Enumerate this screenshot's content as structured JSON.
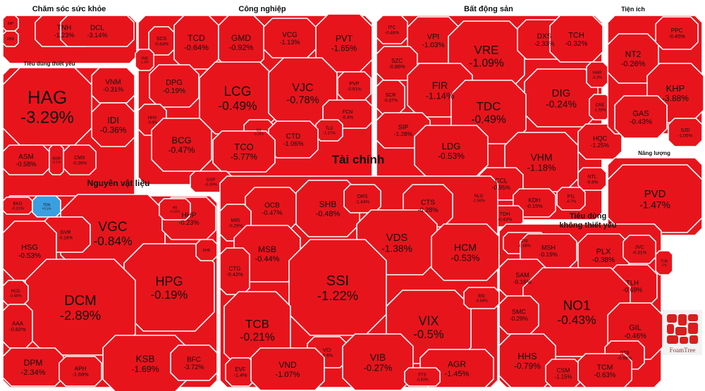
{
  "brand": {
    "logo_text": "FoamTree"
  },
  "colors": {
    "down": "#e8141c",
    "up": "#3a9fe0",
    "border": "#ffffff"
  },
  "chart_data": {
    "type": "treemap",
    "title": "",
    "color_rule": "red = decrease, blue = increase",
    "sectors": [
      {
        "name": "Chăm sóc sức khỏe",
        "stocks": [
          {
            "ticker": "TNH",
            "change": "-1.23%"
          },
          {
            "ticker": "DCL",
            "change": "-3.14%"
          },
          {
            "ticker": "IMP",
            "change": ""
          },
          {
            "ticker": "DBD",
            "change": ""
          }
        ]
      },
      {
        "name": "Công nghiệp",
        "stocks": [
          {
            "ticker": "TCD",
            "change": "-0.64%"
          },
          {
            "ticker": "GMD",
            "change": "-0.92%"
          },
          {
            "ticker": "VCG",
            "change": "-1.13%"
          },
          {
            "ticker": "PVT",
            "change": "-1.65%"
          },
          {
            "ticker": "SCS",
            "change": "-0.64%"
          },
          {
            "ticker": "LCG",
            "change": "-0.49%"
          },
          {
            "ticker": "VJC",
            "change": "-0.78%"
          },
          {
            "ticker": "DPG",
            "change": "-0.19%"
          },
          {
            "ticker": "PVP",
            "change": "-0.91%"
          },
          {
            "ticker": "FCN",
            "change": "-0.4%"
          },
          {
            "ticker": "HHV",
            "change": "-0.9%"
          },
          {
            "ticker": "BCG",
            "change": "-0.47%"
          },
          {
            "ticker": "CII",
            "change": "-0.35%"
          },
          {
            "ticker": "TLD",
            "change": "-1.37%"
          },
          {
            "ticker": "CTD",
            "change": "-1.06%"
          },
          {
            "ticker": "TCO",
            "change": "-5.77%"
          },
          {
            "ticker": "GSP",
            "change": "-0.39%"
          },
          {
            "ticker": "VNE",
            "change": "-1.9%"
          }
        ]
      },
      {
        "name": "Bất động sản",
        "stocks": [
          {
            "ticker": "ITC",
            "change": "-0.46%"
          },
          {
            "ticker": "VPI",
            "change": "-1.03%"
          },
          {
            "ticker": "VRE",
            "change": "-1.09%"
          },
          {
            "ticker": "DXS",
            "change": "-2.33%"
          },
          {
            "ticker": "TCH",
            "change": "-0.32%"
          },
          {
            "ticker": "SZC",
            "change": "-0.86%"
          },
          {
            "ticker": "FIR",
            "change": "-1.14%"
          },
          {
            "ticker": "DIG",
            "change": "-0.24%"
          },
          {
            "ticker": "SCR",
            "change": "-0.37%"
          },
          {
            "ticker": "TDC",
            "change": "-0.49%"
          },
          {
            "ticker": "SIP",
            "change": "-1.28%"
          },
          {
            "ticker": "LDG",
            "change": "-0.53%"
          },
          {
            "ticker": "HQC",
            "change": "-1.25%"
          },
          {
            "ticker": "VHM",
            "change": "-1.18%"
          },
          {
            "ticker": "CCL",
            "change": "-0.95%"
          },
          {
            "ticker": "NTL",
            "change": "-0.8%"
          },
          {
            "ticker": "NLG",
            "change": "-1.56%"
          },
          {
            "ticker": "KDH",
            "change": "-0.15%"
          },
          {
            "ticker": "PTL",
            "change": "-0.7%"
          },
          {
            "ticker": "TDH",
            "change": "-0.43%"
          },
          {
            "ticker": "HAR",
            "change": "-0.3%"
          },
          {
            "ticker": "CRE",
            "change": "-1.58%"
          }
        ]
      },
      {
        "name": "Tiện ích",
        "stocks": [
          {
            "ticker": "NT2",
            "change": "-0.26%"
          },
          {
            "ticker": "PPC",
            "change": "-0.45%"
          },
          {
            "ticker": "KHP",
            "change": "-3.88%"
          },
          {
            "ticker": "GAS",
            "change": "-0.43%"
          },
          {
            "ticker": "SJD",
            "change": "-1.05%"
          }
        ]
      },
      {
        "name": "Năng lượng",
        "stocks": [
          {
            "ticker": "PVD",
            "change": "-1.47%"
          }
        ]
      },
      {
        "name": "Tiêu dùng thiết yếu",
        "stocks": [
          {
            "ticker": "HAG",
            "change": "-3.29%"
          },
          {
            "ticker": "VNM",
            "change": "-0.31%"
          },
          {
            "ticker": "IDI",
            "change": "-0.36%"
          },
          {
            "ticker": "ASM",
            "change": "-0.58%"
          },
          {
            "ticker": "CMX",
            "change": "-0.39%"
          },
          {
            "ticker": "AGM",
            "change": "-0.1%"
          }
        ]
      },
      {
        "name": "Nguyên vật liệu",
        "stocks": [
          {
            "ticker": "BKG",
            "change": "-0.31%"
          },
          {
            "ticker": "TDN",
            "change": "+0.1%"
          },
          {
            "ticker": "VGC",
            "change": "-0.84%"
          },
          {
            "ticker": "HHP",
            "change": "-0.23%"
          },
          {
            "ticker": "GVR",
            "change": "-0.16%"
          },
          {
            "ticker": "HSG",
            "change": "-0.53%"
          },
          {
            "ticker": "HII",
            "change": "-0.22%"
          },
          {
            "ticker": "HPG",
            "change": "-0.19%"
          },
          {
            "ticker": "DCM",
            "change": "-2.89%"
          },
          {
            "ticker": "HCD",
            "change": "-0.46%"
          },
          {
            "ticker": "AAA",
            "change": "-0.82%"
          },
          {
            "ticker": "KSB",
            "change": "-1.69%"
          },
          {
            "ticker": "DPM",
            "change": "-2.34%"
          },
          {
            "ticker": "APH",
            "change": "-1.69%"
          },
          {
            "ticker": "BFC",
            "change": "-3.72%"
          },
          {
            "ticker": "PHR",
            "change": ""
          }
        ]
      },
      {
        "name": "Tài chính",
        "stocks": [
          {
            "ticker": "OCB",
            "change": "-0.47%"
          },
          {
            "ticker": "SHB",
            "change": "-0.48%"
          },
          {
            "ticker": "ORS",
            "change": "-1.44%"
          },
          {
            "ticker": "CTS",
            "change": "-0.28%"
          },
          {
            "ticker": "MIG",
            "change": "-0.29%"
          },
          {
            "ticker": "VDS",
            "change": "-1.38%"
          },
          {
            "ticker": "MSB",
            "change": "-0.44%"
          },
          {
            "ticker": "HCM",
            "change": "-0.53%"
          },
          {
            "ticker": "CTG",
            "change": "-0.42%"
          },
          {
            "ticker": "SSI",
            "change": "-1.22%"
          },
          {
            "ticker": "TCB",
            "change": "-0.21%"
          },
          {
            "ticker": "VIX",
            "change": "-0.5%"
          },
          {
            "ticker": "BSI",
            "change": "-0.68%"
          },
          {
            "ticker": "VCI",
            "change": "-0.6%"
          },
          {
            "ticker": "EVF",
            "change": "-1.4%"
          },
          {
            "ticker": "VND",
            "change": "-1.07%"
          },
          {
            "ticker": "VIB",
            "change": "-0.27%"
          },
          {
            "ticker": "AGR",
            "change": "-1.45%"
          },
          {
            "ticker": "FTS",
            "change": "-0.83%"
          }
        ]
      },
      {
        "name": "Tiêu dùng không thiết yếu",
        "stocks": [
          {
            "ticker": "TNI",
            "change": "-0.88%"
          },
          {
            "ticker": "MSH",
            "change": "-0.19%"
          },
          {
            "ticker": "PLX",
            "change": "-0.38%"
          },
          {
            "ticker": "JVC",
            "change": "-0.31%"
          },
          {
            "ticker": "SAM",
            "change": "-0.16%"
          },
          {
            "ticker": "TLH",
            "change": "-0.69%"
          },
          {
            "ticker": "NO1",
            "change": "-0.43%"
          },
          {
            "ticker": "SMC",
            "change": "-0.29%"
          },
          {
            "ticker": "GIL",
            "change": "-0.46%"
          },
          {
            "ticker": "HHS",
            "change": "-0.79%"
          },
          {
            "ticker": "ST8",
            "change": "-0.99%"
          },
          {
            "ticker": "CSM",
            "change": "-1.15%"
          },
          {
            "ticker": "TCM",
            "change": "-0.63%"
          },
          {
            "ticker": "TVB",
            "change": "-1%"
          }
        ]
      }
    ]
  }
}
